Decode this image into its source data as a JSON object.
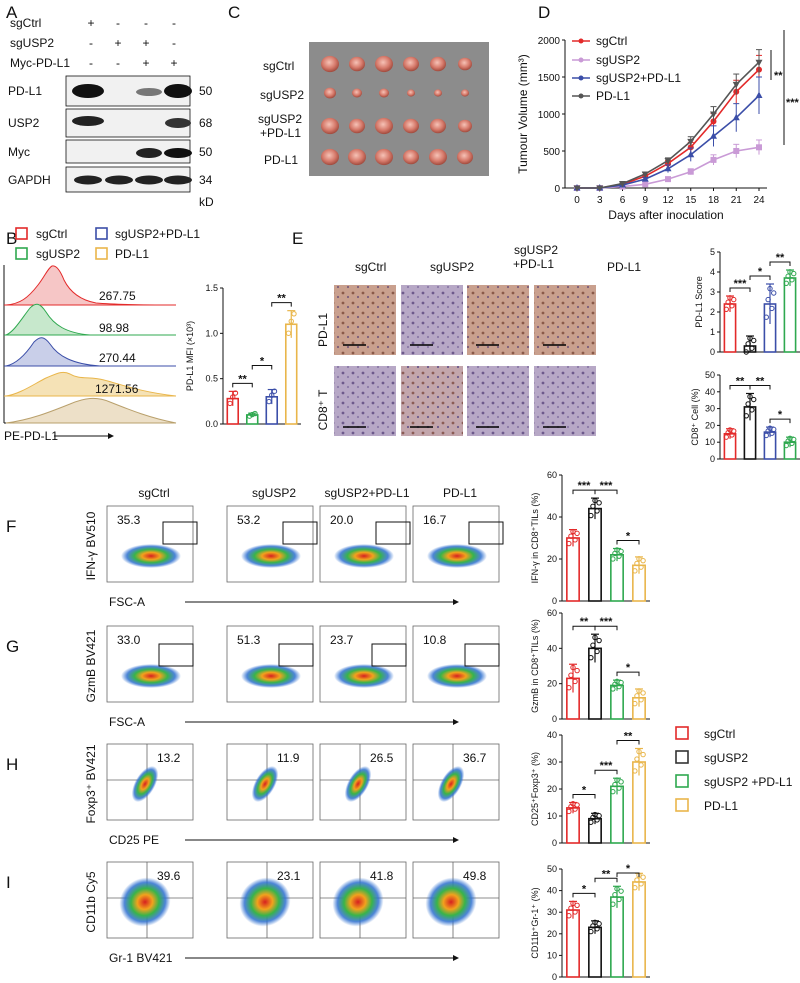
{
  "panels": {
    "A": "A",
    "B": "B",
    "C": "C",
    "D": "D",
    "E": "E",
    "F": "F",
    "G": "G",
    "H": "H",
    "I": "I"
  },
  "colors": {
    "sgCtrl": "#e32a2a",
    "sgUSP2": "#2fa84f",
    "sgUSP2_PDL1": "#3b4ea8",
    "PDL1": "#e9b64b",
    "D_sgUSP2": "#c99ad6",
    "D_PDL1": "#555555",
    "black": "#111111"
  },
  "A": {
    "rows": [
      "sgCtrl",
      "sgUSP2",
      "Myc-PD-L1"
    ],
    "signs": [
      [
        "+",
        "-",
        "-",
        "-"
      ],
      [
        "-",
        "+",
        "+",
        "-"
      ],
      [
        "-",
        "-",
        "+",
        "+"
      ]
    ],
    "blots": [
      "PD-L1",
      "USP2",
      "Myc",
      "GAPDH"
    ],
    "kd": [
      "50",
      "68",
      "50",
      "34"
    ],
    "unit": "kD"
  },
  "B": {
    "legend": [
      "sgCtrl",
      "sgUSP2",
      "sgUSP2+PD-L1",
      "PD-L1"
    ],
    "mfi": [
      "267.75",
      "98.98",
      "270.44",
      "1271.56"
    ],
    "xlabel": "PE-PD-L1",
    "ylabel": "PD-L1 MFI (×10³)",
    "yticks": [
      "0.0",
      "0.5",
      "1.0",
      "1.5"
    ],
    "stars": [
      "**",
      "*",
      "**"
    ]
  },
  "C": {
    "rows": [
      "sgCtrl",
      "sgUSP2",
      "sgUSP2\n+PD-L1",
      "PD-L1"
    ],
    "row_a": "sgUSP2",
    "row_b": "+PD-L1"
  },
  "D": {
    "ylabel": "Tumour Volume (mm³)",
    "xlabel": "Days after inoculation",
    "yticks": [
      "0",
      "500",
      "1000",
      "1500",
      "2000"
    ],
    "xticks": [
      "0",
      "3",
      "6",
      "9",
      "12",
      "15",
      "18",
      "21",
      "24"
    ],
    "legend": [
      "sgCtrl",
      "sgUSP2",
      "sgUSP2+PD-L1",
      "PD-L1"
    ],
    "stars": [
      "**",
      "***"
    ]
  },
  "E": {
    "cols": [
      "sgCtrl",
      "sgUSP2",
      "sgUSP2\n+PD-L1",
      "PD-L1"
    ],
    "col3a": "sgUSP2",
    "col3b": "+PD-L1",
    "rows": [
      "PD-L1",
      "CD8⁺ T"
    ],
    "chart1": {
      "ylabel": "PD-L1 Score",
      "yticks": [
        "0",
        "1",
        "2",
        "3",
        "4",
        "5"
      ],
      "stars": [
        "***",
        "*",
        "**"
      ]
    },
    "chart2": {
      "ylabel": "CD8⁺ Cell (%)",
      "yticks": [
        "0",
        "10",
        "20",
        "30",
        "40",
        "50"
      ],
      "stars": [
        "**",
        "**",
        "*"
      ]
    }
  },
  "flow": {
    "cols": [
      "sgCtrl",
      "sgUSP2",
      "sgUSP2+PD-L1",
      "PD-L1"
    ],
    "F": {
      "ylabel": "IFN-γ BV510",
      "xlabel": "FSC-A",
      "values": [
        "35.3",
        "53.2",
        "20.0",
        "16.7"
      ]
    },
    "G": {
      "ylabel": "GzmB BV421",
      "xlabel": "FSC-A",
      "values": [
        "33.0",
        "51.3",
        "23.7",
        "10.8"
      ]
    },
    "H": {
      "ylabel": "Foxp3⁺ BV421",
      "xlabel": "CD25 PE",
      "values": [
        "13.2",
        "11.9",
        "26.5",
        "36.7"
      ]
    },
    "I": {
      "ylabel": "CD11b Cy5",
      "xlabel": "Gr-1 BV421",
      "values": [
        "39.6",
        "23.1",
        "41.8",
        "49.8"
      ]
    }
  },
  "bars": {
    "F": {
      "ylabel": "IFN-γ in CD8⁺TILs (%)",
      "yticks": [
        "0",
        "20",
        "40",
        "60"
      ],
      "stars": [
        "***",
        "***",
        "*"
      ]
    },
    "G": {
      "ylabel": "GzmB in CD8⁺TILs (%)",
      "yticks": [
        "0",
        "20",
        "40",
        "60"
      ],
      "stars": [
        "**",
        "***",
        "*"
      ]
    },
    "H": {
      "ylabel": "CD25⁺Foxp3⁺ (%)",
      "yticks": [
        "0",
        "10",
        "20",
        "30",
        "40"
      ],
      "stars": [
        "*",
        "***",
        "**"
      ]
    },
    "I": {
      "ylabel": "CD11b⁺Gr-1⁺ (%)",
      "yticks": [
        "0",
        "10",
        "20",
        "30",
        "40",
        "50"
      ],
      "stars": [
        "*",
        "**",
        "*"
      ]
    }
  },
  "legendGH": [
    "sgCtrl",
    "sgUSP2",
    "sgUSP2 +PD-L1",
    "PD-L1"
  ],
  "chart_data": [
    {
      "type": "bar",
      "title": "B",
      "ylabel": "PD-L1 MFI (×10³)",
      "categories": [
        "sgCtrl",
        "sgUSP2",
        "sgUSP2+PD-L1",
        "PD-L1"
      ],
      "values": [
        0.28,
        0.1,
        0.3,
        1.1
      ],
      "ylim": [
        0,
        1.5
      ]
    },
    {
      "type": "line",
      "title": "D",
      "xlabel": "Days after inoculation",
      "ylabel": "Tumour Volume (mm³)",
      "x": [
        0,
        3,
        6,
        9,
        12,
        15,
        18,
        21,
        24
      ],
      "ylim": [
        0,
        2000
      ],
      "series": [
        {
          "name": "sgCtrl",
          "values": [
            0,
            0,
            50,
            160,
            330,
            550,
            900,
            1300,
            1600
          ]
        },
        {
          "name": "sgUSP2",
          "values": [
            0,
            0,
            20,
            50,
            120,
            220,
            380,
            500,
            550
          ]
        },
        {
          "name": "sgUSP2+PD-L1",
          "values": [
            0,
            0,
            40,
            120,
            260,
            450,
            700,
            950,
            1250
          ]
        },
        {
          "name": "PD-L1",
          "values": [
            0,
            0,
            60,
            190,
            370,
            630,
            1000,
            1400,
            1700
          ]
        }
      ]
    },
    {
      "type": "bar",
      "title": "E-PD-L1",
      "ylabel": "PD-L1 Score",
      "categories": [
        "sgCtrl",
        "sgUSP2",
        "sgUSP2+PD-L1",
        "PD-L1"
      ],
      "values": [
        2.4,
        0.3,
        2.4,
        3.7
      ],
      "ylim": [
        0,
        5
      ]
    },
    {
      "type": "bar",
      "title": "E-CD8",
      "ylabel": "CD8⁺ Cell (%)",
      "categories": [
        "sgCtrl",
        "sgUSP2",
        "sgUSP2+PD-L1",
        "PD-L1"
      ],
      "values": [
        15,
        31,
        16,
        10
      ],
      "ylim": [
        0,
        50
      ]
    },
    {
      "type": "bar",
      "title": "F",
      "ylabel": "IFN-γ in CD8⁺TILs (%)",
      "categories": [
        "sgCtrl",
        "sgUSP2",
        "sgUSP2+PD-L1",
        "PD-L1"
      ],
      "values": [
        30,
        44,
        22,
        17
      ],
      "ylim": [
        0,
        60
      ]
    },
    {
      "type": "bar",
      "title": "G",
      "ylabel": "GzmB in CD8⁺TILs (%)",
      "categories": [
        "sgCtrl",
        "sgUSP2",
        "sgUSP2+PD-L1",
        "PD-L1"
      ],
      "values": [
        23,
        40,
        19,
        12
      ],
      "ylim": [
        0,
        60
      ]
    },
    {
      "type": "bar",
      "title": "H",
      "ylabel": "CD25⁺Foxp3⁺ (%)",
      "categories": [
        "sgCtrl",
        "sgUSP2",
        "sgUSP2+PD-L1",
        "PD-L1"
      ],
      "values": [
        13,
        9,
        21,
        30
      ],
      "ylim": [
        0,
        40
      ]
    },
    {
      "type": "bar",
      "title": "I",
      "ylabel": "CD11b⁺Gr-1⁺ (%)",
      "categories": [
        "sgCtrl",
        "sgUSP2",
        "sgUSP2+PD-L1",
        "PD-L1"
      ],
      "values": [
        31,
        23,
        37,
        44
      ],
      "ylim": [
        0,
        50
      ]
    }
  ]
}
